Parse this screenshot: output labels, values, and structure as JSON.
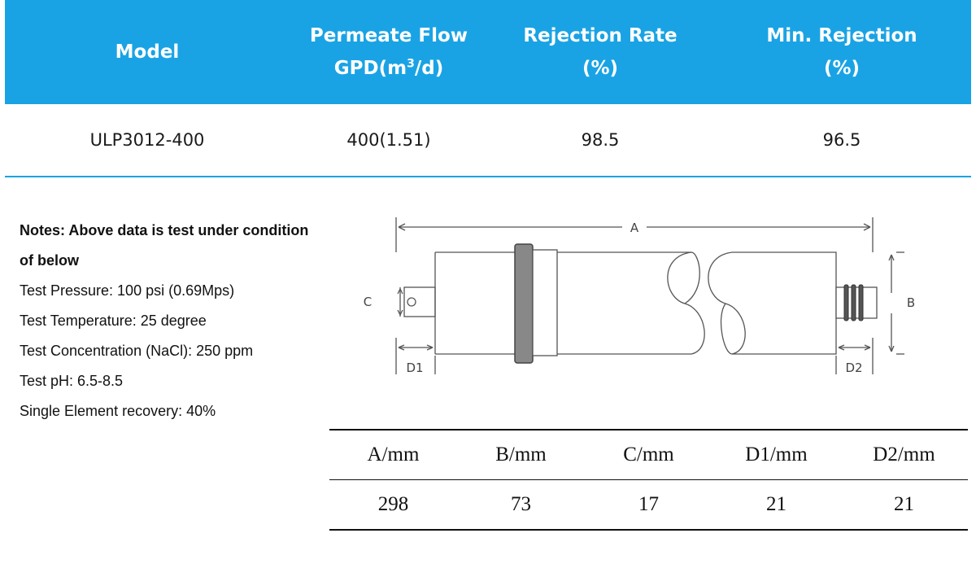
{
  "spec_table": {
    "headers": [
      {
        "line1": "Model",
        "line2": ""
      },
      {
        "line1": "Permeate Flow",
        "line2_pre": "GPD(m",
        "line2_sup": "3",
        "line2_post": "/d)"
      },
      {
        "line1": "Rejection Rate",
        "line2": "(%)"
      },
      {
        "line1": "Min. Rejection",
        "line2": "(%)"
      }
    ],
    "row": [
      "ULP3012-400",
      "400(1.51)",
      "98.5",
      "96.5"
    ]
  },
  "notes": {
    "title_line1": "Notes: Above data is test under condition",
    "title_line2": "of below",
    "items": [
      "Test Pressure: 100 psi (0.69Mps)",
      "Test Temperature: 25 degree",
      "Test Concentration (NaCl): 250 ppm",
      "Test pH: 6.5-8.5",
      "Single Element recovery: 40%"
    ]
  },
  "drawing": {
    "labels": {
      "a": "A",
      "b": "B",
      "c": "C",
      "d1": "D1",
      "d2": "D2"
    }
  },
  "dimension_table": {
    "headers": [
      "A/mm",
      "B/mm",
      "C/mm",
      "D1/mm",
      "D2/mm"
    ],
    "values": [
      "298",
      "73",
      "17",
      "21",
      "21"
    ]
  },
  "colors": {
    "accent": "#1aa3e4"
  }
}
